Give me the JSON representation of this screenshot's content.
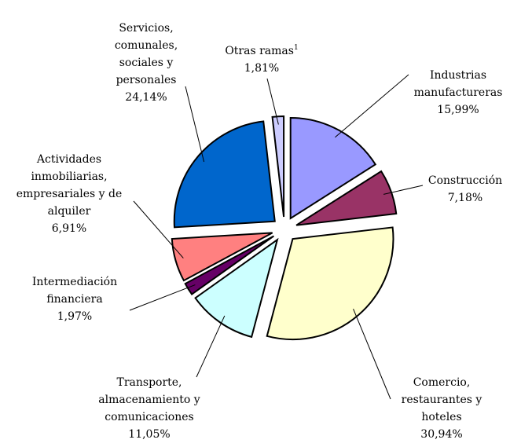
{
  "chart_data": {
    "type": "pie",
    "categories": [
      "Industrias manufactureras",
      "Construcción",
      "Comercio, restaurantes y hoteles",
      "Transporte, almacenamiento y comunicaciones",
      "Intermediación financiera",
      "Actividades inmobiliarias, empresariales y de alquiler",
      "Servicios, comunales, sociales y personales",
      "Otras ramas"
    ],
    "values": [
      15.99,
      7.18,
      30.94,
      11.05,
      1.97,
      6.91,
      24.14,
      1.81
    ],
    "value_labels": [
      "15,99%",
      "7,18%",
      "30,94%",
      "11,05%",
      "1,97%",
      "6,91%",
      "24,14%",
      "1,81%"
    ],
    "colors": [
      "#9999ff",
      "#993366",
      "#ffffcc",
      "#ccffff",
      "#660066",
      "#ff8080",
      "#0066cc",
      "#ccccff"
    ],
    "footnote_marker": {
      "index": 7,
      "text": "1"
    }
  }
}
